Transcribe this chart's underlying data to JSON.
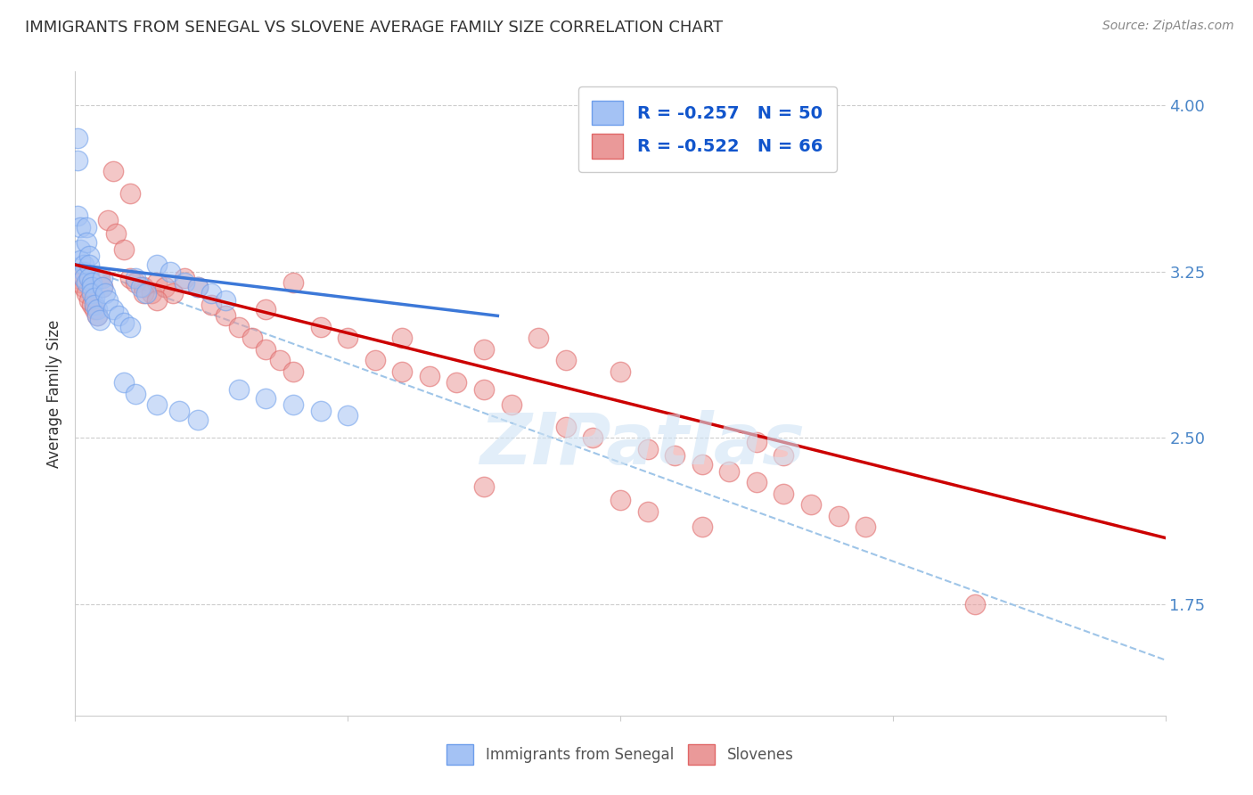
{
  "title": "IMMIGRANTS FROM SENEGAL VS SLOVENE AVERAGE FAMILY SIZE CORRELATION CHART",
  "source": "Source: ZipAtlas.com",
  "ylabel": "Average Family Size",
  "yticks_right": [
    1.75,
    2.5,
    3.25,
    4.0
  ],
  "legend_blue_label": "R = -0.257   N = 50",
  "legend_pink_label": "R = -0.522   N = 66",
  "legend_label_blue": "Immigrants from Senegal",
  "legend_label_pink": "Slovenes",
  "watermark": "ZIPatlas",
  "blue_scatter_color": "#a4c2f4",
  "blue_edge_color": "#6d9eeb",
  "pink_scatter_color": "#ea9999",
  "pink_edge_color": "#e06666",
  "blue_line_color": "#3c78d8",
  "pink_line_color": "#cc0000",
  "dashed_line_color": "#9fc5e8",
  "legend_text_color": "#1155cc",
  "xmin": 0.0,
  "xmax": 0.4,
  "ymin": 1.25,
  "ymax": 4.15,
  "blue_scatter_x": [
    0.001,
    0.001,
    0.001,
    0.002,
    0.002,
    0.002,
    0.003,
    0.003,
    0.003,
    0.004,
    0.004,
    0.004,
    0.005,
    0.005,
    0.005,
    0.006,
    0.006,
    0.006,
    0.007,
    0.007,
    0.008,
    0.008,
    0.009,
    0.01,
    0.01,
    0.011,
    0.012,
    0.014,
    0.016,
    0.018,
    0.02,
    0.022,
    0.024,
    0.026,
    0.03,
    0.035,
    0.04,
    0.045,
    0.05,
    0.055,
    0.06,
    0.07,
    0.08,
    0.09,
    0.1,
    0.018,
    0.022,
    0.03,
    0.038,
    0.045
  ],
  "blue_scatter_y": [
    3.85,
    3.75,
    3.5,
    3.45,
    3.35,
    3.3,
    3.28,
    3.25,
    3.22,
    3.2,
    3.45,
    3.38,
    3.32,
    3.28,
    3.22,
    3.2,
    3.18,
    3.15,
    3.13,
    3.1,
    3.08,
    3.05,
    3.03,
    3.22,
    3.18,
    3.15,
    3.12,
    3.08,
    3.05,
    3.02,
    3.0,
    3.22,
    3.18,
    3.15,
    3.28,
    3.25,
    3.2,
    3.18,
    3.15,
    3.12,
    2.72,
    2.68,
    2.65,
    2.62,
    2.6,
    2.75,
    2.7,
    2.65,
    2.62,
    2.58
  ],
  "pink_scatter_x": [
    0.001,
    0.002,
    0.003,
    0.004,
    0.005,
    0.006,
    0.007,
    0.008,
    0.009,
    0.01,
    0.012,
    0.015,
    0.018,
    0.02,
    0.022,
    0.025,
    0.028,
    0.03,
    0.033,
    0.036,
    0.04,
    0.045,
    0.05,
    0.055,
    0.06,
    0.065,
    0.07,
    0.075,
    0.08,
    0.09,
    0.1,
    0.11,
    0.12,
    0.13,
    0.14,
    0.15,
    0.16,
    0.17,
    0.18,
    0.19,
    0.2,
    0.21,
    0.22,
    0.23,
    0.24,
    0.25,
    0.26,
    0.27,
    0.28,
    0.29,
    0.014,
    0.02,
    0.025,
    0.03,
    0.07,
    0.08,
    0.12,
    0.15,
    0.18,
    0.33,
    0.15,
    0.2,
    0.21,
    0.23,
    0.25,
    0.26
  ],
  "pink_scatter_y": [
    3.22,
    3.2,
    3.18,
    3.15,
    3.12,
    3.1,
    3.08,
    3.05,
    3.22,
    3.18,
    3.48,
    3.42,
    3.35,
    3.22,
    3.2,
    3.18,
    3.15,
    3.2,
    3.18,
    3.15,
    3.22,
    3.18,
    3.1,
    3.05,
    3.0,
    2.95,
    2.9,
    2.85,
    2.8,
    3.0,
    2.95,
    2.85,
    2.8,
    2.78,
    2.75,
    2.72,
    2.65,
    2.95,
    2.55,
    2.5,
    2.8,
    2.45,
    2.42,
    2.38,
    2.35,
    2.3,
    2.25,
    2.2,
    2.15,
    2.1,
    3.7,
    3.6,
    3.15,
    3.12,
    3.08,
    3.2,
    2.95,
    2.9,
    2.85,
    1.75,
    2.28,
    2.22,
    2.17,
    2.1,
    2.48,
    2.42
  ],
  "blue_line_x": [
    0.0,
    0.155
  ],
  "blue_line_y": [
    3.28,
    3.05
  ],
  "pink_line_x": [
    0.0,
    0.4
  ],
  "pink_line_y": [
    3.28,
    2.05
  ],
  "dashed_line_x": [
    0.0,
    0.4
  ],
  "dashed_line_y": [
    3.28,
    1.5
  ]
}
